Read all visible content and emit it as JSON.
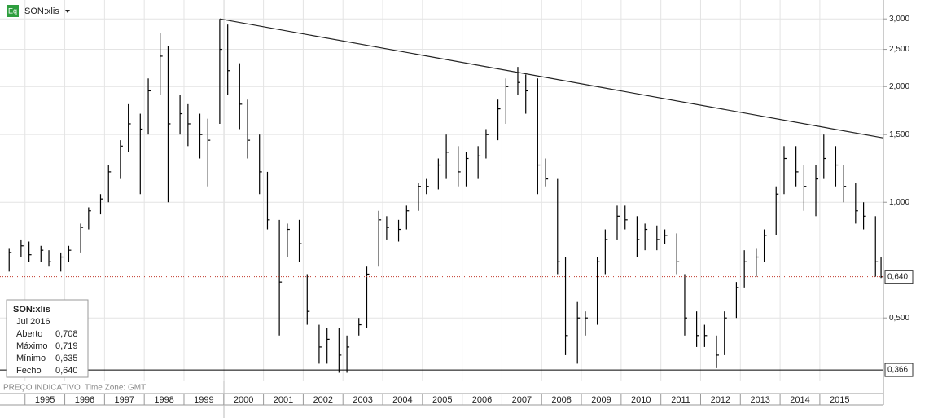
{
  "chart_data": {
    "type": "ohlc",
    "title": "SON:xlis",
    "log_scale": true,
    "grid": true,
    "color": "#000000",
    "x": [
      1994.6,
      1994.9,
      1995.1,
      1995.4,
      1995.6,
      1995.9,
      1996.1,
      1996.4,
      1996.6,
      1996.9,
      1997.1,
      1997.4,
      1997.6,
      1997.9,
      1998.1,
      1998.4,
      1998.6,
      1998.9,
      1999.1,
      1999.4,
      1999.6,
      1999.9,
      2000.1,
      2000.4,
      2000.6,
      2000.9,
      2001.1,
      2001.4,
      2001.6,
      2001.9,
      2002.1,
      2002.4,
      2002.6,
      2002.9,
      2003.1,
      2003.4,
      2003.6,
      2003.9,
      2004.1,
      2004.4,
      2004.6,
      2004.9,
      2005.1,
      2005.4,
      2005.6,
      2005.9,
      2006.1,
      2006.4,
      2006.6,
      2006.9,
      2007.1,
      2007.4,
      2007.6,
      2007.9,
      2008.1,
      2008.4,
      2008.6,
      2008.9,
      2009.1,
      2009.4,
      2009.6,
      2009.9,
      2010.1,
      2010.4,
      2010.6,
      2010.9,
      2011.1,
      2011.4,
      2011.6,
      2011.9,
      2012.1,
      2012.4,
      2012.6,
      2012.9,
      2013.1,
      2013.4,
      2013.6,
      2013.9,
      2014.1,
      2014.4,
      2014.6,
      2014.9,
      2015.1,
      2015.4,
      2015.6,
      2015.9,
      2016.1,
      2016.4,
      2016.54
    ],
    "high": [
      0.76,
      0.8,
      0.79,
      0.77,
      0.75,
      0.74,
      0.77,
      0.88,
      0.97,
      1.05,
      1.25,
      1.45,
      1.8,
      1.7,
      2.1,
      2.75,
      2.55,
      1.9,
      1.8,
      1.7,
      1.65,
      3.0,
      2.9,
      2.3,
      1.85,
      1.5,
      1.2,
      0.9,
      0.88,
      0.9,
      0.65,
      0.48,
      0.47,
      0.47,
      0.45,
      0.5,
      0.68,
      0.95,
      0.92,
      0.9,
      0.98,
      1.12,
      1.15,
      1.3,
      1.5,
      1.4,
      1.35,
      1.4,
      1.55,
      1.85,
      2.1,
      2.25,
      2.15,
      2.1,
      1.3,
      1.15,
      0.72,
      0.55,
      0.52,
      0.72,
      0.85,
      0.98,
      0.98,
      0.92,
      0.88,
      0.87,
      0.85,
      0.83,
      0.65,
      0.52,
      0.48,
      0.45,
      0.52,
      0.62,
      0.75,
      0.76,
      0.85,
      1.1,
      1.4,
      1.4,
      1.25,
      1.25,
      1.5,
      1.4,
      1.25,
      1.12,
      1.0,
      0.92,
      0.719
    ],
    "low": [
      0.66,
      0.72,
      0.7,
      0.7,
      0.68,
      0.66,
      0.7,
      0.74,
      0.85,
      0.93,
      1.0,
      1.15,
      1.35,
      1.05,
      1.5,
      1.9,
      1.0,
      1.5,
      1.4,
      1.3,
      1.1,
      1.6,
      1.9,
      1.55,
      1.3,
      1.05,
      0.85,
      0.45,
      0.72,
      0.7,
      0.48,
      0.38,
      0.38,
      0.36,
      0.36,
      0.45,
      0.47,
      0.68,
      0.8,
      0.79,
      0.85,
      0.95,
      1.05,
      1.08,
      1.15,
      1.1,
      1.1,
      1.15,
      1.3,
      1.45,
      1.6,
      1.9,
      1.7,
      1.05,
      1.1,
      0.65,
      0.4,
      0.38,
      0.45,
      0.48,
      0.65,
      0.8,
      0.85,
      0.72,
      0.75,
      0.75,
      0.78,
      0.65,
      0.45,
      0.42,
      0.42,
      0.37,
      0.4,
      0.5,
      0.6,
      0.64,
      0.7,
      0.82,
      1.05,
      1.1,
      0.95,
      0.92,
      1.15,
      1.1,
      1.0,
      0.88,
      0.85,
      0.64,
      0.635
    ],
    "close": [
      0.74,
      0.77,
      0.73,
      0.75,
      0.7,
      0.72,
      0.75,
      0.86,
      0.95,
      1.02,
      1.2,
      1.4,
      1.6,
      1.55,
      1.95,
      2.4,
      1.6,
      1.7,
      1.6,
      1.5,
      1.45,
      2.5,
      2.2,
      1.8,
      1.45,
      1.2,
      0.9,
      0.62,
      0.85,
      0.78,
      0.52,
      0.42,
      0.44,
      0.4,
      0.42,
      0.48,
      0.65,
      0.9,
      0.86,
      0.85,
      0.95,
      1.1,
      1.1,
      1.25,
      1.35,
      1.2,
      1.3,
      1.32,
      1.5,
      1.75,
      2.0,
      2.05,
      1.95,
      1.25,
      1.15,
      0.7,
      0.45,
      0.5,
      0.5,
      0.7,
      0.8,
      0.92,
      0.9,
      0.8,
      0.85,
      0.8,
      0.82,
      0.7,
      0.5,
      0.45,
      0.45,
      0.4,
      0.5,
      0.6,
      0.7,
      0.72,
      0.82,
      1.05,
      1.3,
      1.2,
      1.1,
      1.15,
      1.3,
      1.25,
      1.1,
      0.95,
      0.92,
      0.7,
      0.64
    ],
    "xlim": [
      1994.37,
      2016.6
    ],
    "ylim": [
      0.342,
      3.36
    ],
    "xticks": [
      {
        "value": 1995,
        "label": "1995"
      },
      {
        "value": 1996,
        "label": "1996"
      },
      {
        "value": 1997,
        "label": "1997"
      },
      {
        "value": 1998,
        "label": "1998"
      },
      {
        "value": 1999,
        "label": "1999"
      },
      {
        "value": 2000,
        "label": "2000"
      },
      {
        "value": 2001,
        "label": "2001"
      },
      {
        "value": 2002,
        "label": "2002"
      },
      {
        "value": 2003,
        "label": "2003"
      },
      {
        "value": 2004,
        "label": "2004"
      },
      {
        "value": 2005,
        "label": "2005"
      },
      {
        "value": 2006,
        "label": "2006"
      },
      {
        "value": 2007,
        "label": "2007"
      },
      {
        "value": 2008,
        "label": "2008"
      },
      {
        "value": 2009,
        "label": "2009"
      },
      {
        "value": 2010,
        "label": "2010"
      },
      {
        "value": 2011,
        "label": "2011"
      },
      {
        "value": 2012,
        "label": "2012"
      },
      {
        "value": 2013,
        "label": "2013"
      },
      {
        "value": 2014,
        "label": "2014"
      },
      {
        "value": 2015,
        "label": "2015"
      }
    ],
    "yticks": [
      {
        "value": 3,
        "label": "3,000"
      },
      {
        "value": 2.5,
        "label": "2,500"
      },
      {
        "value": 2,
        "label": "2,000"
      },
      {
        "value": 1.5,
        "label": "1,500"
      },
      {
        "value": 1,
        "label": "1,000"
      },
      {
        "value": 0.5,
        "label": "0,500"
      }
    ],
    "price_lines": [
      {
        "value": 0.64,
        "label": "0,640",
        "color": "#c0392b",
        "dotted": true
      },
      {
        "value": 0.366,
        "label": "0,366",
        "color": "#000000",
        "dotted": false
      }
    ],
    "trend_line": {
      "x": [
        1999.9,
        2016.6
      ],
      "y": [
        3.0,
        1.47
      ]
    },
    "footer": "PREÇO INDICATIVO",
    "timezone": "Time Zone: GMT",
    "tooltip": {
      "title": "SON:xlis",
      "date": "Jul 2016",
      "rows": [
        [
          "Aberto",
          "0,708"
        ],
        [
          "Máximo",
          "0,719"
        ],
        [
          "Mínimo",
          "0,635"
        ],
        [
          "Fecho",
          "0,640"
        ]
      ]
    },
    "icon": "Eq"
  }
}
